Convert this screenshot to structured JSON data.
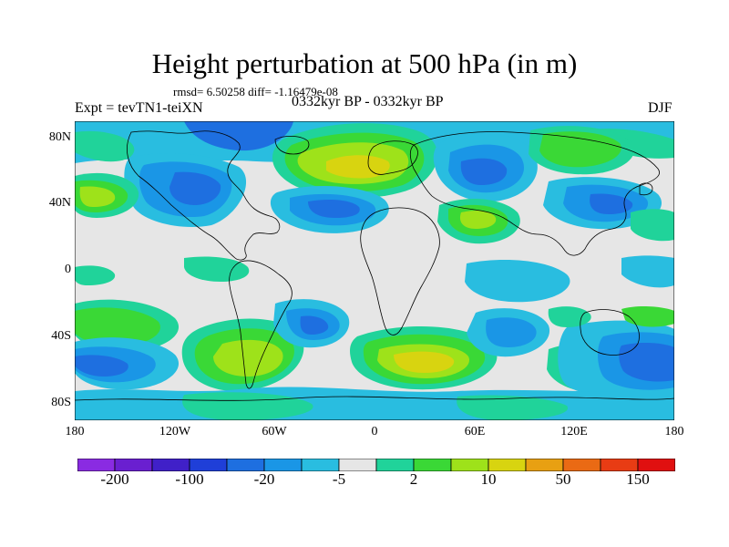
{
  "title": "Height perturbation at 500 hPa (in m)",
  "stats": "rmsd= 6.50258 diff= -1.16479e-08",
  "left_label": "Expt = tevTN1-teiXN",
  "center_label": "0332kyr BP - 0332kyr BP",
  "right_label": "DJF",
  "y_ticks": [
    "80N",
    "40N",
    "0",
    "40S",
    "80S"
  ],
  "x_ticks": [
    "180",
    "120W",
    "60W",
    "0",
    "60E",
    "120E",
    "180"
  ],
  "colorbar": {
    "colors": [
      "#8a2be2",
      "#6a1fd0",
      "#4020c8",
      "#1f3fd8",
      "#1e6fe0",
      "#1a96e6",
      "#29bde0",
      "#e6e6e6",
      "#20d39a",
      "#3ad836",
      "#9ee21a",
      "#d8d410",
      "#e8a012",
      "#ea6a14",
      "#e83c14",
      "#e01010"
    ],
    "labels": [
      "-200",
      "-100",
      "-20",
      "-5",
      "2",
      "10",
      "50",
      "150"
    ]
  }
}
